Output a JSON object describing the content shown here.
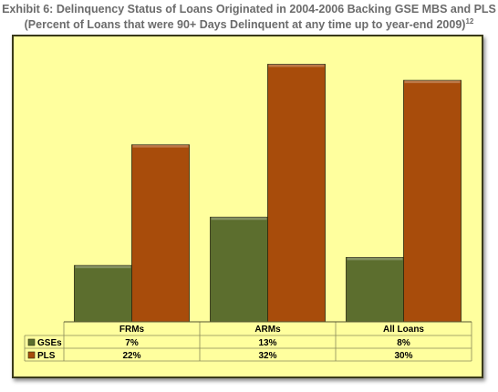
{
  "title_line1": "Exhibit 6: Delinquency Status of Loans Originated in 2004-2006 Backing GSE MBS and PLS",
  "title_line2": "(Percent of Loans that were 90+ Days Delinquent at any time up to year-end 2009)",
  "title_footnote": "12",
  "colors": {
    "gses": "#5c6e2e",
    "pls": "#a84c0b",
    "background": "#ffff9e"
  },
  "chart_data": {
    "type": "bar",
    "categories": [
      "FRMs",
      "ARMs",
      "All Loans"
    ],
    "series": [
      {
        "name": "GSEs",
        "values": [
          7,
          13,
          8
        ],
        "labels": [
          "7%",
          "13%",
          "8%"
        ]
      },
      {
        "name": "PLS",
        "values": [
          22,
          32,
          30
        ],
        "labels": [
          "22%",
          "32%",
          "30%"
        ]
      }
    ],
    "ylim": [
      0,
      35
    ],
    "grid": false,
    "legend": "data table below chart"
  }
}
